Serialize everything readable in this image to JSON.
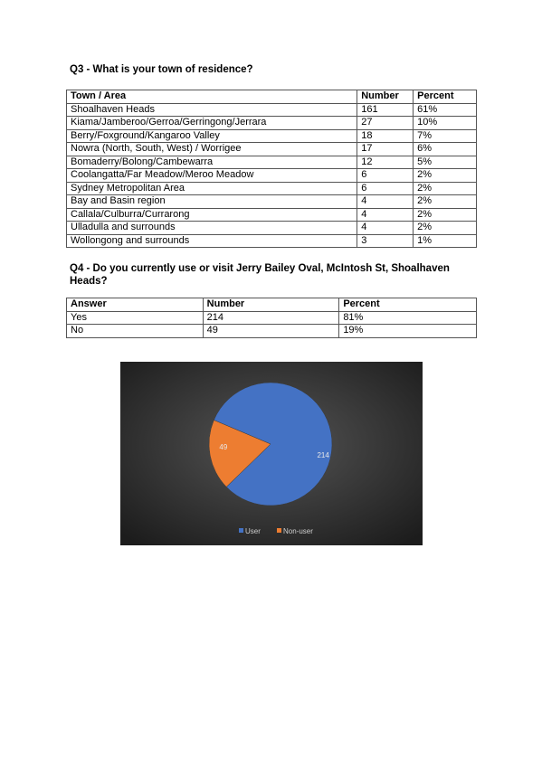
{
  "q3": {
    "heading": "Q3 - What is your town of residence?",
    "headers": [
      "Town / Area",
      "Number",
      "Percent"
    ],
    "rows": [
      [
        "Shoalhaven Heads",
        "161",
        "61%"
      ],
      [
        "Kiama/Jamberoo/Gerroa/Gerringong/Jerrara",
        "27",
        "10%"
      ],
      [
        "Berry/Foxground/Kangaroo Valley",
        "18",
        "7%"
      ],
      [
        "Nowra (North, South, West) / Worrigee",
        "17",
        "6%"
      ],
      [
        "Bomaderry/Bolong/Cambewarra",
        "12",
        "5%"
      ],
      [
        "Coolangatta/Far Meadow/Meroo Meadow",
        "6",
        "2%"
      ],
      [
        "Sydney Metropolitan Area",
        "6",
        "2%"
      ],
      [
        "Bay and Basin region",
        "4",
        "2%"
      ],
      [
        "Callala/Culburra/Currarong",
        "4",
        "2%"
      ],
      [
        "Ulladulla and surrounds",
        "4",
        "2%"
      ],
      [
        "Wollongong and surrounds",
        "3",
        "1%"
      ]
    ]
  },
  "q4": {
    "heading": "Q4 - Do you currently use or visit Jerry Bailey Oval, McIntosh St, Shoalhaven Heads?",
    "headers": [
      "Answer",
      "Number",
      "Percent"
    ],
    "rows": [
      [
        "Yes",
        "214",
        "81%"
      ],
      [
        "No",
        "49",
        "19%"
      ]
    ]
  },
  "chart_data": {
    "type": "pie",
    "categories": [
      "User",
      "Non-user"
    ],
    "values": [
      214,
      49
    ],
    "colors": [
      "#4472c4",
      "#ed7d31"
    ],
    "data_labels": [
      "214",
      "49"
    ],
    "legend": "bottom",
    "background": "#2b2b2b"
  }
}
